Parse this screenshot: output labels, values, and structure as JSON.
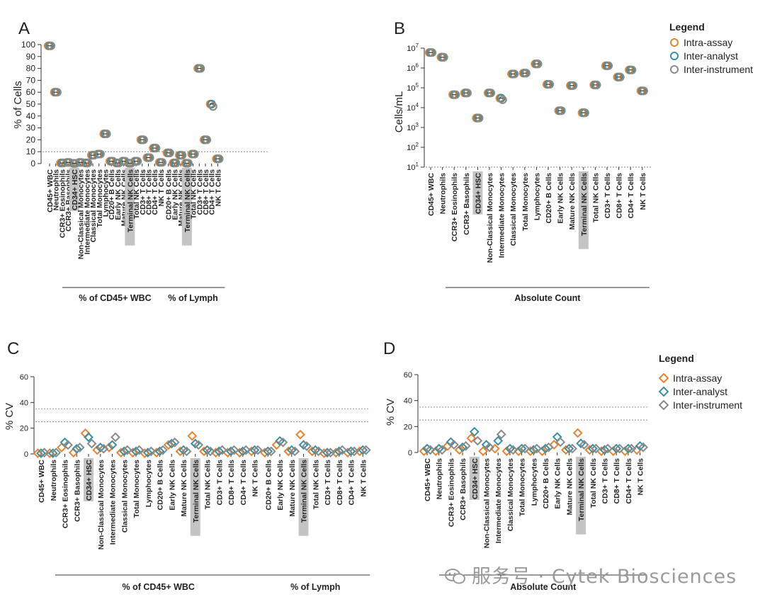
{
  "colors": {
    "intra": "#E8832E",
    "inter_analyst": "#3A8FA6",
    "inter_instrument": "#8A8A8A",
    "highlight": "#c4c4c4",
    "ref_red": "#e08080",
    "ref_gray": "#888888"
  },
  "legend_top": {
    "title": "Legend",
    "items": [
      "Intra-assay",
      "Inter-analyst",
      "Inter-instrument"
    ]
  },
  "legend_bottom": {
    "title": "Legend",
    "items": [
      "Intra-assay",
      "Inter-analyst",
      "Inter-instrument"
    ]
  },
  "watermark": "服务号 · Cytek Biosciences",
  "chart_data": [
    {
      "panel": "A",
      "type": "scatter",
      "ylabel": "% of Cells",
      "ylim": [
        0,
        100
      ],
      "yticks": [
        0,
        10,
        20,
        30,
        40,
        50,
        60,
        70,
        80,
        90,
        100
      ],
      "reference_line": 10,
      "categories": [
        "CD45+ WBC",
        "Neutrophils",
        "CCR3+ Eosinophils",
        "CCR3+ Basophils",
        "CD34+ HSC",
        "Non-Classical Monocytes",
        "Intermediate Monocytes",
        "Classical Monocytes",
        "Total Monocytes",
        "Lymphocytes",
        "CD20+ B Cells",
        "Early NK Cells",
        "Mature NK Cells",
        "Terminal NK Cells",
        "Total NK Cells",
        "CD3+ T Cells",
        "CD8+ T Cells",
        "CD4+ T Cells",
        "NK T Cells",
        "CD20+ B Cells",
        "Early NK Cells",
        "Mature NK Cells",
        "Terminal NK Cells",
        "Total NK Cells",
        "CD3+ T Cells",
        "CD8+ T Cells",
        "CD4+ T Cells",
        "NK T Cells"
      ],
      "highlighted": [
        "CD34+ HSC",
        "Terminal NK Cells"
      ],
      "groups": [
        {
          "label": "% of CD45+ WBC",
          "start": 0,
          "end": 18
        },
        {
          "label": "% of Lymph",
          "start": 19,
          "end": 27
        }
      ],
      "series": [
        {
          "name": "Intra-assay",
          "values": [
            99,
            60,
            0.5,
            1,
            0.2,
            1,
            0.5,
            7,
            8,
            25,
            2,
            0.5,
            2,
            0.3,
            2,
            20,
            5,
            13,
            1,
            9,
            0.5,
            7,
            0.3,
            8,
            80,
            20,
            50,
            4
          ]
        },
        {
          "name": "Inter-analyst",
          "values": [
            99,
            60,
            0.5,
            1,
            0.2,
            1,
            0.5,
            7,
            8,
            25,
            2,
            0.5,
            2,
            0.3,
            2,
            20,
            5,
            13,
            1,
            9,
            0.5,
            7,
            0.3,
            8,
            80,
            20,
            50,
            4
          ]
        },
        {
          "name": "Inter-instrument",
          "values": [
            99,
            60,
            0.5,
            1,
            0.2,
            1,
            0.5,
            7,
            8,
            25,
            2,
            0.5,
            2,
            0.3,
            2,
            20,
            5,
            13,
            1,
            9,
            0.5,
            7,
            0.3,
            8,
            80,
            20,
            48,
            4
          ]
        }
      ]
    },
    {
      "panel": "B",
      "type": "scatter",
      "ylabel": "Cells/mL",
      "yscale": "log",
      "ylim": [
        10,
        10000000
      ],
      "yticks": [
        "10^1",
        "10^2",
        "10^3",
        "10^4",
        "10^5",
        "10^6",
        "10^7"
      ],
      "reference_line": 10,
      "categories": [
        "CD45+ WBC",
        "Neutrophils",
        "CCR3+ Eosinophils",
        "CCR3+ Basophils",
        "CD34+ HSC",
        "Non-Classical Monocytes",
        "Intermediate Monocytes",
        "Classical Monocytes",
        "Total Monocytes",
        "Lymphocytes",
        "CD20+ B Cells",
        "Early NK Cells",
        "Mature NK Cells",
        "Terminal NK Cells",
        "Total NK Cells",
        "CD3+ T Cells",
        "CD8+ T Cells",
        "CD4+ T Cells",
        "NK T Cells"
      ],
      "highlighted": [
        "CD34+ HSC",
        "Terminal NK Cells"
      ],
      "groups": [
        {
          "label": "Absolute Count",
          "start": 0,
          "end": 18
        }
      ],
      "series": [
        {
          "name": "Intra-assay",
          "values": [
            6000000,
            3500000,
            45000,
            55000,
            3000,
            55000,
            30000,
            500000,
            550000,
            1600000,
            150000,
            7000,
            130000,
            5500,
            140000,
            1300000,
            350000,
            800000,
            70000
          ]
        },
        {
          "name": "Inter-analyst",
          "values": [
            6000000,
            3500000,
            45000,
            55000,
            3000,
            55000,
            30000,
            500000,
            550000,
            1600000,
            150000,
            7000,
            130000,
            5500,
            140000,
            1300000,
            350000,
            800000,
            70000
          ]
        },
        {
          "name": "Inter-instrument",
          "values": [
            6000000,
            3500000,
            45000,
            55000,
            3000,
            55000,
            25000,
            500000,
            550000,
            1600000,
            150000,
            7000,
            130000,
            5500,
            140000,
            1300000,
            350000,
            800000,
            70000
          ]
        }
      ]
    },
    {
      "panel": "C",
      "type": "scatter",
      "ylabel": "% CV",
      "ylim": [
        0,
        60
      ],
      "yticks": [
        0,
        20,
        40,
        60
      ],
      "reference_lines": [
        {
          "value": 35,
          "color": "red"
        },
        {
          "value": 25,
          "color": "gray"
        }
      ],
      "categories": [
        "CD45+ WBC",
        "Neutrophils",
        "CCR3+ Eosinophils",
        "CCR3+ Basophils",
        "CD34+ HSC",
        "Non-Classical Monocytes",
        "Intermediate Monocytes",
        "Classical Monocytes",
        "Total Monocytes",
        "Lymphocytes",
        "CD20+ B Cells",
        "Early NK Cells",
        "Mature NK Cells",
        "Terminal NK Cells",
        "Total NK Cells",
        "CD3+ T Cells",
        "CD8+ T Cells",
        "CD4+ T Cells",
        "NK T Cells",
        "CD20+ B Cells",
        "Early NK Cells",
        "Mature NK Cells",
        "Terminal NK Cells",
        "Total NK Cells",
        "CD3+ T Cells",
        "CD8+ T Cells",
        "CD4+ T Cells",
        "NK T Cells"
      ],
      "highlighted": [
        "CD34+ HSC",
        "Terminal NK Cells"
      ],
      "groups": [
        {
          "label": "% of CD45+ WBC",
          "start": 0,
          "end": 18
        },
        {
          "label": "% of Lymph",
          "start": 19,
          "end": 27
        }
      ],
      "series": [
        {
          "name": "Intra-assay",
          "values": [
            0.5,
            0.5,
            5,
            1,
            16,
            3,
            5,
            1,
            1,
            0.5,
            1,
            7,
            2,
            14,
            2,
            1,
            1,
            1,
            2,
            1,
            7,
            2,
            15,
            2,
            0.5,
            1,
            1,
            2
          ]
        },
        {
          "name": "Inter-analyst",
          "values": [
            0.5,
            0.5,
            9,
            4,
            13,
            5,
            7,
            2,
            2,
            1,
            2,
            8,
            3,
            8,
            3,
            2,
            2,
            2,
            3,
            2,
            10,
            3,
            7,
            3,
            1,
            2,
            2,
            3
          ]
        },
        {
          "name": "Inter-instrument",
          "values": [
            1,
            1,
            7,
            5,
            8,
            4,
            13,
            3,
            3,
            2,
            3,
            9,
            2,
            7,
            2,
            3,
            3,
            3,
            3,
            2,
            9,
            2,
            6,
            2,
            1,
            3,
            2,
            3
          ]
        }
      ]
    },
    {
      "panel": "D",
      "type": "scatter",
      "ylabel": "% CV",
      "ylim": [
        0,
        60
      ],
      "yticks": [
        0,
        20,
        40,
        60
      ],
      "reference_lines": [
        {
          "value": 35,
          "color": "red"
        },
        {
          "value": 25,
          "color": "gray"
        }
      ],
      "categories": [
        "CD45+ WBC",
        "Neutrophils",
        "CCR3+ Eosinophils",
        "CCR3+ Basophils",
        "CD34+ HSC",
        "Non-Classical Monocytes",
        "Intermediate Monocytes",
        "Classical Monocytes",
        "Total Monocytes",
        "Lymphocytes",
        "CD20+ B Cells",
        "Early NK Cells",
        "Mature NK Cells",
        "Terminal NK Cells",
        "Total NK Cells",
        "CD3+ T Cells",
        "CD8+ T Cells",
        "CD4+ T Cells",
        "NK T Cells"
      ],
      "highlighted": [
        "CD34+ HSC",
        "Terminal NK Cells"
      ],
      "groups": [
        {
          "label": "Absolute Count",
          "start": 0,
          "end": 18
        }
      ],
      "series": [
        {
          "name": "Intra-assay",
          "values": [
            1,
            1,
            5,
            2,
            11,
            1,
            3,
            1,
            1,
            1,
            1,
            6,
            2,
            15,
            2,
            1,
            1,
            1,
            2
          ]
        },
        {
          "name": "Inter-analyst",
          "values": [
            3,
            3,
            8,
            4,
            16,
            6,
            9,
            3,
            3,
            2,
            3,
            12,
            3,
            7,
            3,
            2,
            3,
            3,
            5
          ]
        },
        {
          "name": "Inter-instrument",
          "values": [
            2,
            2,
            6,
            5,
            9,
            4,
            14,
            2,
            3,
            3,
            4,
            8,
            3,
            6,
            3,
            3,
            3,
            3,
            4
          ]
        }
      ]
    }
  ]
}
